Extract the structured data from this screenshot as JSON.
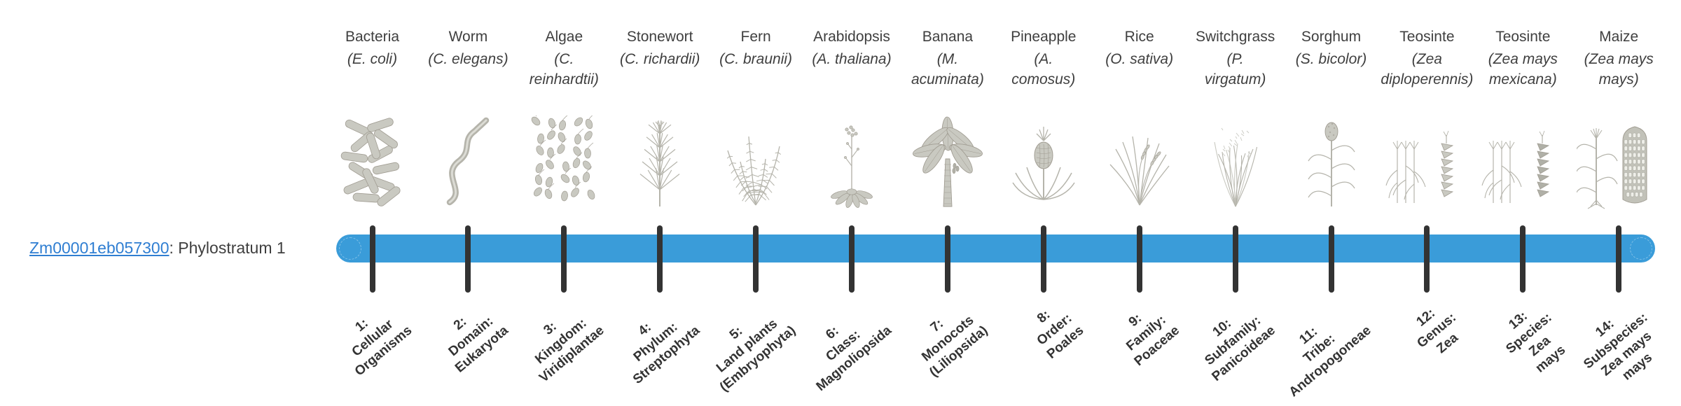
{
  "gene": {
    "id": "Zm00001eb057300",
    "label_suffix": ": Phylostratum 1"
  },
  "colors": {
    "bar_blue": "#3a9cd9",
    "tick": "#333333",
    "link": "#2f7ed2",
    "heading_text": "#3f3f3f",
    "stratum_text": "#333333",
    "art_gray": "#c9c9c1"
  },
  "organisms": [
    {
      "common": "Bacteria",
      "species_lines": [
        "(E. coli)"
      ],
      "stratum_lines": [
        "1:",
        "Cellular",
        "Organisms"
      ],
      "icon": "bacteria"
    },
    {
      "common": "Worm",
      "species_lines": [
        "(C. elegans)"
      ],
      "stratum_lines": [
        "2:",
        "Domain:",
        "Eukaryota"
      ],
      "icon": "worm"
    },
    {
      "common": "Algae",
      "species_lines": [
        "(C.",
        "reinhardtii)"
      ],
      "stratum_lines": [
        "3:",
        "Kingdom:",
        "Viridiplantae"
      ],
      "icon": "algae"
    },
    {
      "common": "Stonewort",
      "species_lines": [
        "(C. richardii)"
      ],
      "stratum_lines": [
        "4:",
        "Phylum:",
        "Streptophyta"
      ],
      "icon": "stonewort"
    },
    {
      "common": "Fern",
      "species_lines": [
        "(C. braunii)"
      ],
      "stratum_lines": [
        "5:",
        "Land plants",
        "(Embryophyta)"
      ],
      "icon": "fern"
    },
    {
      "common": "Arabidopsis",
      "species_lines": [
        "(A. thaliana)"
      ],
      "stratum_lines": [
        "6:",
        "Class:",
        "Magnoliopsida"
      ],
      "icon": "arabidopsis"
    },
    {
      "common": "Banana",
      "species_lines": [
        "(M.",
        "acuminata)"
      ],
      "stratum_lines": [
        "7:",
        "Monocots",
        "(Liliopsida)"
      ],
      "icon": "banana"
    },
    {
      "common": "Pineapple",
      "species_lines": [
        "(A.",
        "comosus)"
      ],
      "stratum_lines": [
        "8:",
        "Order:",
        "Poales"
      ],
      "icon": "pineapple"
    },
    {
      "common": "Rice",
      "species_lines": [
        "(O. sativa)"
      ],
      "stratum_lines": [
        "9:",
        "Family:",
        "Poaceae"
      ],
      "icon": "rice"
    },
    {
      "common": "Switchgrass",
      "species_lines": [
        "(P.",
        "virgatum)"
      ],
      "stratum_lines": [
        "10:",
        "Subfamily:",
        "Panicoideae"
      ],
      "icon": "switchgrass"
    },
    {
      "common": "Sorghum",
      "species_lines": [
        "(S. bicolor)"
      ],
      "stratum_lines": [
        "11:",
        "Tribe:",
        "Andropogoneae"
      ],
      "icon": "sorghum"
    },
    {
      "common": "Teosinte",
      "species_lines": [
        "(Zea",
        "diploperennis)"
      ],
      "stratum_lines": [
        "12:",
        "Genus:",
        "Zea"
      ],
      "icon": "teosinte-diploperennis"
    },
    {
      "common": "Teosinte",
      "species_lines": [
        "(Zea mays",
        "mexicana)"
      ],
      "stratum_lines": [
        "13:",
        "Species:",
        "Zea",
        "mays"
      ],
      "icon": "teosinte-mexicana"
    },
    {
      "common": "Maize",
      "species_lines": [
        "(Zea mays",
        "mays)"
      ],
      "stratum_lines": [
        "14:",
        "Subspecies:",
        "Zea mays",
        "mays"
      ],
      "icon": "maize"
    }
  ]
}
